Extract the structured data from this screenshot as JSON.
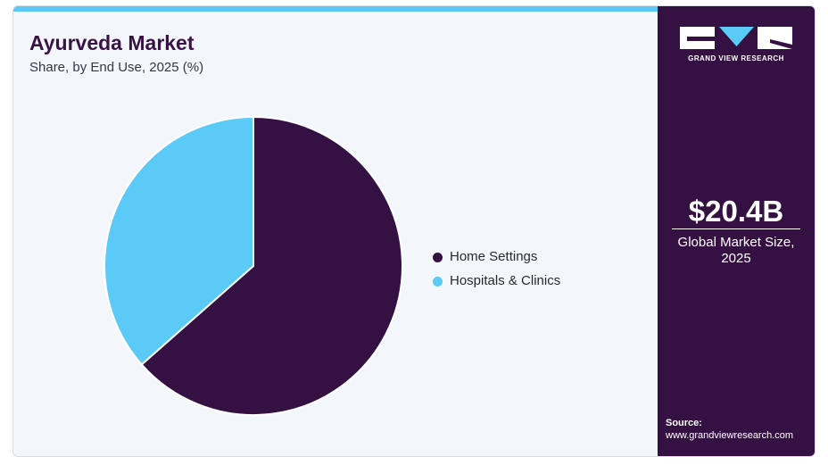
{
  "header": {
    "title": "Ayurveda Market",
    "subtitle": "Share, by End Use, 2025 (%)"
  },
  "legend": [
    {
      "label": "Home Settings",
      "color": "#351042"
    },
    {
      "label": "Hospitals & Clinics",
      "color": "#5ccaf7"
    }
  ],
  "sidebar": {
    "logo_text": "GRAND VIEW RESEARCH",
    "market_value": "$20.4B",
    "market_label": "Global Market Size, 2025",
    "source_label": "Source:",
    "source_url": "www.grandviewresearch.com"
  },
  "colors": {
    "background": "#f3f7fb",
    "accent": "#5ccaf7",
    "brand_dark": "#351042",
    "title": "#3b1246"
  },
  "chart_data": {
    "type": "pie",
    "title": "Ayurveda Market",
    "subtitle": "Share, by End Use, 2025 (%)",
    "categories": [
      "Home Settings",
      "Hospitals & Clinics"
    ],
    "values": [
      63.5,
      36.5
    ],
    "colors": [
      "#351042",
      "#5ccaf7"
    ],
    "legend": "right",
    "start_angle": "top",
    "direction": "clockwise"
  }
}
